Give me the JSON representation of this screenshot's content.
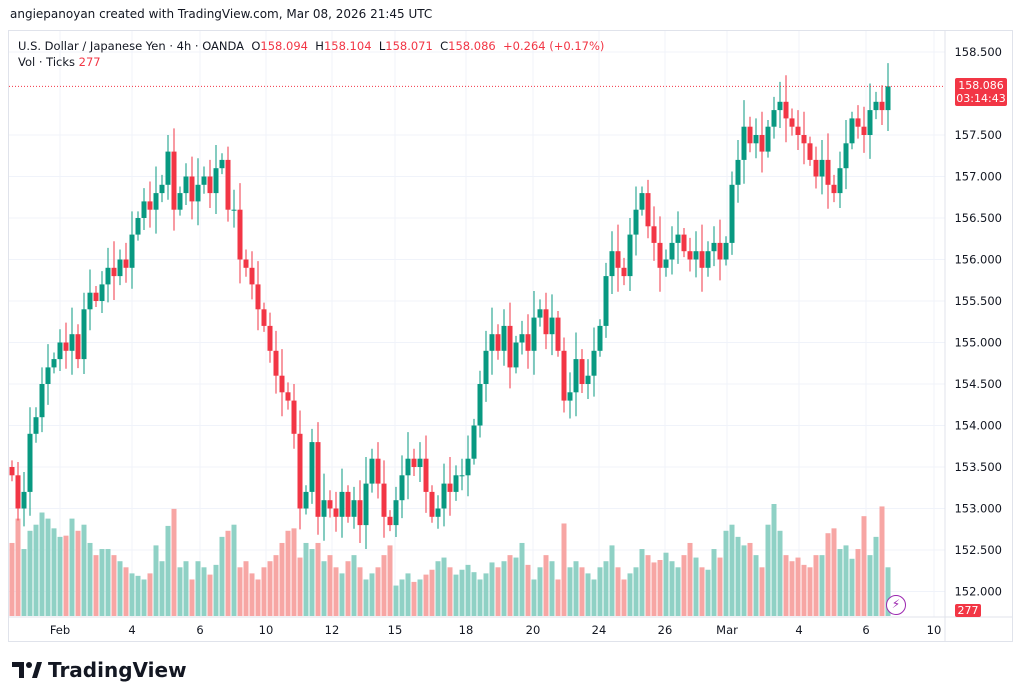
{
  "credit": "angiepanoyan created with TradingView.com, Mar 08, 2026 21:45 UTC",
  "legend": {
    "symbol": "U.S. Dollar / Japanese Yen · 4h · OANDA",
    "o_label": "O",
    "o": "158.094",
    "h_label": "H",
    "h": "158.104",
    "l_label": "L",
    "l": "158.071",
    "c_label": "C",
    "c": "158.086",
    "change": "+0.264 (+0.17%)",
    "vol_label": "Vol · Ticks",
    "vol": "277"
  },
  "price_tag": {
    "price": "158.086",
    "countdown": "03:14:43"
  },
  "vol_tag": "277",
  "logo": "TradingView",
  "colors": {
    "up": "#089981",
    "down": "#f23645",
    "vol_up": "#8fd1c5",
    "vol_down": "#f7a6a4"
  },
  "chart_data": {
    "type": "candlestick",
    "title": "U.S. Dollar / Japanese Yen · 4h · OANDA",
    "ylim": [
      151.7,
      158.75
    ],
    "y_ticks": [
      "158.500",
      "157.500",
      "157.000",
      "156.500",
      "156.000",
      "155.500",
      "155.000",
      "154.500",
      "154.000",
      "153.500",
      "153.000",
      "152.500",
      "152.000"
    ],
    "x_ticks": [
      "Feb",
      "4",
      "6",
      "10",
      "12",
      "15",
      "18",
      "20",
      "24",
      "26",
      "Mar",
      "4",
      "6",
      "10"
    ],
    "closes": [
      153.4,
      153.0,
      153.2,
      153.9,
      154.1,
      154.5,
      154.7,
      154.8,
      155.0,
      154.9,
      155.1,
      154.8,
      155.4,
      155.6,
      155.5,
      155.7,
      155.9,
      155.8,
      156.0,
      155.9,
      156.3,
      156.5,
      156.7,
      156.6,
      156.8,
      156.9,
      157.3,
      156.6,
      156.8,
      157.0,
      156.7,
      156.9,
      157.0,
      156.8,
      157.1,
      157.2,
      156.6,
      156.6,
      156.0,
      155.9,
      155.7,
      155.4,
      155.2,
      154.9,
      154.6,
      154.4,
      154.3,
      153.9,
      153.0,
      153.2,
      153.8,
      152.9,
      153.1,
      153.0,
      152.9,
      153.2,
      152.9,
      153.1,
      152.8,
      153.3,
      153.6,
      153.3,
      152.9,
      152.8,
      153.1,
      153.4,
      153.6,
      153.5,
      153.6,
      153.2,
      152.9,
      153.0,
      153.3,
      153.2,
      153.4,
      153.4,
      153.6,
      154.0,
      154.5,
      154.9,
      155.1,
      154.9,
      155.2,
      154.7,
      155.0,
      155.1,
      154.9,
      155.3,
      155.4,
      155.1,
      155.3,
      154.9,
      154.3,
      154.4,
      154.8,
      154.5,
      154.6,
      154.9,
      155.2,
      155.8,
      156.1,
      155.9,
      155.8,
      156.3,
      156.6,
      156.8,
      156.4,
      156.2,
      155.9,
      156.0,
      156.2,
      156.3,
      156.1,
      156.0,
      156.1,
      155.9,
      156.1,
      156.2,
      156.0,
      156.2,
      156.9,
      157.2,
      157.6,
      157.4,
      157.5,
      157.3,
      157.6,
      157.8,
      157.9,
      157.7,
      157.6,
      157.5,
      157.4,
      157.2,
      157.0,
      157.2,
      156.9,
      156.8,
      157.1,
      157.4,
      157.7,
      157.6,
      157.5,
      157.8,
      157.9,
      157.8,
      158.086
    ],
    "volumes": [
      60,
      80,
      55,
      70,
      75,
      85,
      80,
      72,
      65,
      66,
      80,
      70,
      75,
      60,
      50,
      55,
      55,
      50,
      45,
      40,
      35,
      33,
      30,
      35,
      58,
      45,
      74,
      88,
      40,
      45,
      30,
      45,
      40,
      34,
      42,
      65,
      70,
      75,
      40,
      45,
      35,
      30,
      40,
      45,
      50,
      60,
      70,
      72,
      48,
      60,
      55,
      60,
      45,
      50,
      40,
      35,
      45,
      50,
      40,
      30,
      35,
      40,
      50,
      58,
      25,
      30,
      35,
      28,
      30,
      34,
      38,
      45,
      48,
      40,
      34,
      38,
      42,
      36,
      30,
      35,
      44,
      40,
      45,
      50,
      48,
      60,
      42,
      30,
      40,
      50,
      45,
      30,
      76,
      40,
      45,
      40,
      35,
      30,
      40,
      45,
      58,
      40,
      30,
      35,
      40,
      55,
      50,
      44,
      46,
      52,
      45,
      40,
      50,
      60,
      48,
      40,
      38,
      55,
      48,
      70,
      75,
      65,
      58,
      60,
      50,
      40,
      75,
      92,
      70,
      50,
      45,
      48,
      42,
      40,
      50,
      50,
      68,
      72,
      55,
      58,
      47,
      55,
      82,
      50,
      65,
      90,
      40
    ]
  }
}
